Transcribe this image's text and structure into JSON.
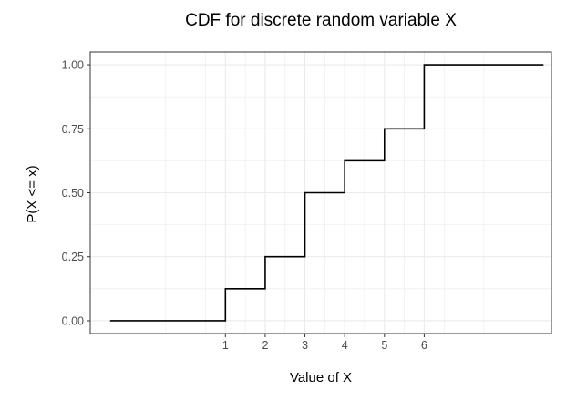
{
  "chart_data": {
    "type": "line",
    "step": true,
    "title": "CDF for discrete random variable X",
    "xlabel": "Value of X",
    "ylabel": "P(X <= x)",
    "x_ticks": [
      "1",
      "2",
      "3",
      "4",
      "5",
      "6"
    ],
    "y_ticks": [
      "0.00",
      "0.25",
      "0.50",
      "0.75",
      "1.00"
    ],
    "xlim": [
      -2.4,
      9.2
    ],
    "ylim": [
      -0.05,
      1.05
    ],
    "grid": true,
    "legend": "none",
    "series": [
      {
        "x": [
          -1.9,
          1,
          1,
          2,
          2,
          3,
          3,
          4,
          4,
          5,
          5,
          6,
          6,
          9.0
        ],
        "y": [
          0,
          0,
          0.125,
          0.125,
          0.25,
          0.25,
          0.5,
          0.5,
          0.625,
          0.625,
          0.75,
          0.75,
          1.0,
          1.0
        ]
      }
    ],
    "colors": {
      "line": "#000000",
      "grid": "#ebebeb",
      "panel_border": "#333333",
      "tick_text": "#4d4d4d"
    }
  }
}
